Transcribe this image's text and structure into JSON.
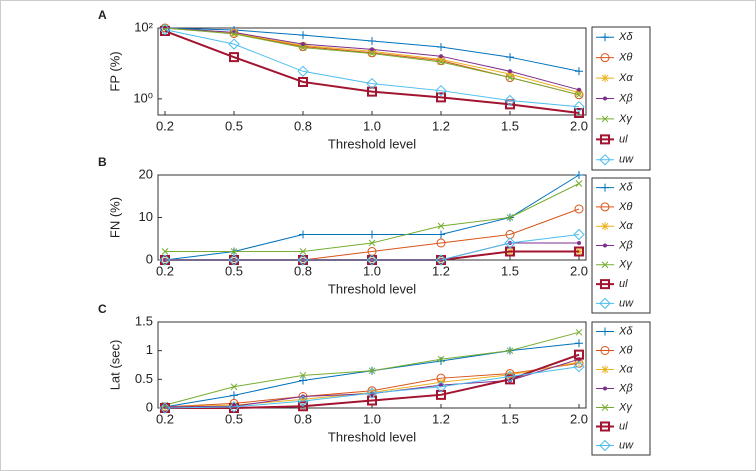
{
  "chart_data": [
    {
      "type": "line",
      "panel_label": "A",
      "ylabel": "FP (%)",
      "xlabel": "Threshold level",
      "log_scale": true,
      "legend": "outside-right",
      "categories": [
        "0.2",
        "0.5",
        "0.8",
        "1.0",
        "1.2",
        "1.5",
        "2.0"
      ],
      "ylim": [
        0.35,
        100
      ],
      "yticks": [
        {
          "value": 1,
          "label": "10⁰"
        },
        {
          "value": 100,
          "label": "10²"
        }
      ],
      "series": [
        {
          "name": "Xδ",
          "color": "#0072bd",
          "marker": "plus",
          "values": [
            100,
            88,
            63,
            43,
            29,
            15,
            6
          ]
        },
        {
          "name": "Xθ",
          "color": "#d95319",
          "marker": "circle",
          "values": [
            100,
            70,
            30,
            20,
            12,
            4,
            1.3
          ]
        },
        {
          "name": "Xα",
          "color": "#edb120",
          "marker": "star",
          "values": [
            100,
            72,
            32,
            22,
            13,
            5,
            1.5
          ]
        },
        {
          "name": "Xβ",
          "color": "#7e2f8e",
          "marker": "dot",
          "values": [
            100,
            75,
            35,
            25,
            16,
            6,
            1.8
          ]
        },
        {
          "name": "Xγ",
          "color": "#77ac30",
          "marker": "cross",
          "values": [
            100,
            68,
            28,
            19,
            11,
            4,
            1.3
          ]
        },
        {
          "name": "ul",
          "color": "#a2142f",
          "marker": "square",
          "values": [
            82,
            15,
            3,
            1.6,
            1.1,
            0.7,
            0.4
          ]
        },
        {
          "name": "uw",
          "color": "#4dbeee",
          "marker": "diamond",
          "values": [
            90,
            35,
            6,
            2.7,
            1.7,
            0.9,
            0.6
          ]
        }
      ]
    },
    {
      "type": "line",
      "panel_label": "B",
      "ylabel": "FN (%)",
      "xlabel": "Threshold level",
      "log_scale": false,
      "legend": "outside-right",
      "categories": [
        "0.2",
        "0.5",
        "0.8",
        "1.0",
        "1.2",
        "1.5",
        "2.0"
      ],
      "ylim": [
        0,
        20
      ],
      "yticks": [
        0,
        10,
        20
      ],
      "series": [
        {
          "name": "Xδ",
          "color": "#0072bd",
          "marker": "plus",
          "values": [
            0,
            2,
            6,
            6,
            6,
            10,
            20
          ]
        },
        {
          "name": "Xθ",
          "color": "#d95319",
          "marker": "circle",
          "values": [
            0,
            0,
            0,
            2,
            4,
            6,
            12
          ]
        },
        {
          "name": "Xα",
          "color": "#edb120",
          "marker": "star",
          "values": [
            0,
            0,
            0,
            0,
            0,
            2,
            2
          ]
        },
        {
          "name": "Xβ",
          "color": "#7e2f8e",
          "marker": "dot",
          "values": [
            0,
            0,
            0,
            0,
            0,
            4,
            4
          ]
        },
        {
          "name": "Xγ",
          "color": "#77ac30",
          "marker": "cross",
          "values": [
            2,
            2,
            2,
            4,
            8,
            10,
            18
          ]
        },
        {
          "name": "ul",
          "color": "#a2142f",
          "marker": "square",
          "values": [
            0,
            0,
            0,
            0,
            0,
            2,
            2
          ]
        },
        {
          "name": "uw",
          "color": "#4dbeee",
          "marker": "diamond",
          "values": [
            0,
            0,
            0,
            0,
            0,
            4,
            6
          ]
        }
      ]
    },
    {
      "type": "line",
      "panel_label": "C",
      "ylabel": "Lat (sec)",
      "xlabel": "Threshold level",
      "log_scale": false,
      "legend": "outside-right",
      "categories": [
        "0.2",
        "0.5",
        "0.8",
        "1.0",
        "1.2",
        "1.5",
        "2.0"
      ],
      "ylim": [
        0,
        1.5
      ],
      "yticks": [
        0,
        0.5,
        1,
        1.5
      ],
      "series": [
        {
          "name": "Xδ",
          "color": "#0072bd",
          "marker": "plus",
          "values": [
            0.02,
            0.22,
            0.48,
            0.65,
            0.82,
            1.0,
            1.13
          ]
        },
        {
          "name": "Xθ",
          "color": "#d95319",
          "marker": "circle",
          "values": [
            0.02,
            0.08,
            0.2,
            0.3,
            0.52,
            0.6,
            0.78
          ]
        },
        {
          "name": "Xα",
          "color": "#edb120",
          "marker": "star",
          "values": [
            0.02,
            0.05,
            0.15,
            0.27,
            0.45,
            0.58,
            0.8
          ]
        },
        {
          "name": "Xβ",
          "color": "#7e2f8e",
          "marker": "dot",
          "values": [
            0.02,
            0.03,
            0.2,
            0.25,
            0.4,
            0.48,
            0.85
          ]
        },
        {
          "name": "Xγ",
          "color": "#77ac30",
          "marker": "cross",
          "values": [
            0.05,
            0.37,
            0.57,
            0.65,
            0.85,
            1.0,
            1.32
          ]
        },
        {
          "name": "ul",
          "color": "#a2142f",
          "marker": "square",
          "values": [
            0,
            0,
            0.03,
            0.13,
            0.23,
            0.5,
            0.93
          ]
        },
        {
          "name": "uw",
          "color": "#4dbeee",
          "marker": "diamond",
          "values": [
            0,
            0.02,
            0.12,
            0.26,
            0.37,
            0.55,
            0.72
          ]
        }
      ]
    }
  ]
}
